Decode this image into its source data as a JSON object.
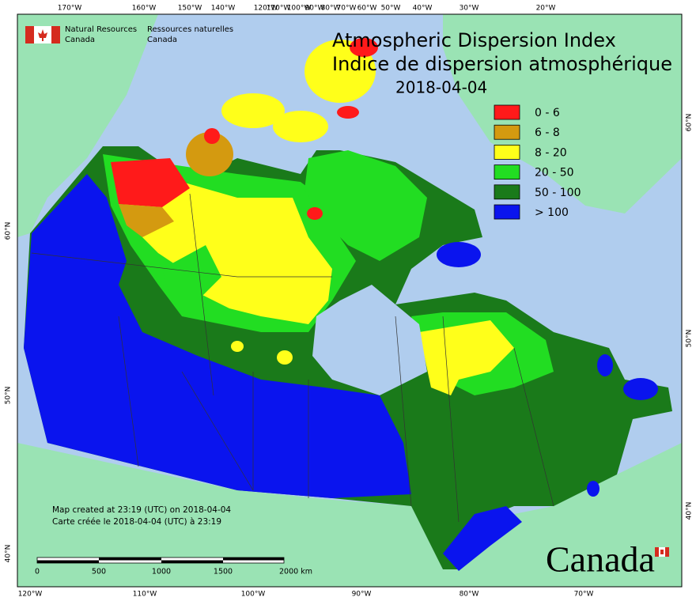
{
  "header": {
    "agency_en": [
      "Natural Resources",
      "Canada"
    ],
    "agency_fr": [
      "Ressources naturelles",
      "Canada"
    ]
  },
  "title": {
    "en": "Atmospheric Dispersion Index",
    "fr": "Indice de dispersion atmosphérique",
    "date": "2018-04-04"
  },
  "legend": [
    {
      "label": "0 - 6",
      "color": "#ff1a1a"
    },
    {
      "label": "6 - 8",
      "color": "#d49a10"
    },
    {
      "label": "8 - 20",
      "color": "#ffff1a"
    },
    {
      "label": "20 - 50",
      "color": "#22dd22"
    },
    {
      "label": "50 - 100",
      "color": "#1a7a1a"
    },
    {
      "label": "> 100",
      "color": "#0a14ee"
    }
  ],
  "top_axis": [
    "170°W",
    "160°W",
    "150°W",
    "140°W",
    "120°W",
    "110°W",
    "100°W",
    "90°W",
    "80°W",
    "70°W",
    "60°W",
    "50°W",
    "40°W",
    "30°W",
    "20°W"
  ],
  "bottom_axis": [
    "120°W",
    "110°W",
    "100°W",
    "90°W",
    "80°W",
    "70°W"
  ],
  "left_axis": [
    "60°N",
    "50°N",
    "40°N"
  ],
  "right_axis": [
    "60°N",
    "50°N",
    "40°N"
  ],
  "notes": [
    "Map created at 23:19 (UTC) on 2018-04-04",
    "Carte créée le 2018-04-04 (UTC) à 23:19"
  ],
  "scale_bar": [
    "0",
    "500",
    "1000",
    "1500",
    "2000 km"
  ],
  "wordmark": "Canada"
}
